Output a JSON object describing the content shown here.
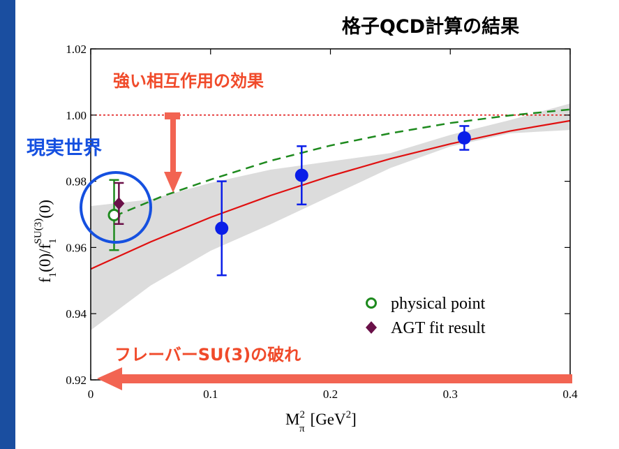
{
  "title": "格子QCD計算の結果",
  "annotations": {
    "strong_interaction": "強い相互作用の効果",
    "real_world": "現実世界",
    "flavor_breaking": "フレーバーSU(3)の破れ"
  },
  "colors": {
    "side_bar": "#1a4ea0",
    "blue_points": "#0a1ee8",
    "fit_line": "#e01010",
    "dashed_fit": "#1e8a1e",
    "physical_point": "#1e8a1e",
    "agt_point": "#6a1048",
    "band": "#dcdcdc",
    "arrow": "#f26452",
    "annotation_red": "#f04a2a",
    "circle_blue": "#1550e0"
  },
  "chart_data": {
    "type": "scatter",
    "xlabel": "M",
    "xlabel_sup": "2",
    "xlabel_sub": "π",
    "xlabel_unit": "[GeV",
    "xlabel_unit_sup": "2",
    "xlabel_unit_end": "]",
    "ylabel": "f",
    "ylabel_sub1": "1",
    "ylabel_mid": "(0)/f",
    "ylabel_sub2": "1",
    "ylabel_sup": "SU(3)",
    "ylabel_end": "(0)",
    "xlim": [
      0,
      0.4
    ],
    "ylim": [
      0.92,
      1.02
    ],
    "x_ticks": [
      {
        "v": 0,
        "label": "0"
      },
      {
        "v": 0.1,
        "label": "0.1"
      },
      {
        "v": 0.2,
        "label": "0.2"
      },
      {
        "v": 0.3,
        "label": "0.3"
      },
      {
        "v": 0.4,
        "label": "0.4"
      }
    ],
    "y_ticks": [
      {
        "v": 0.92,
        "label": "0.92"
      },
      {
        "v": 0.94,
        "label": "0.94"
      },
      {
        "v": 0.96,
        "label": "0.96"
      },
      {
        "v": 0.98,
        "label": "0.98"
      },
      {
        "v": 1.0,
        "label": "1.00"
      },
      {
        "v": 1.02,
        "label": "1.02"
      }
    ],
    "reference_line": 1.0,
    "lattice_points": [
      {
        "x": 0.1093,
        "y": 0.9658,
        "err_lo": 0.0142,
        "err_hi": 0.0142
      },
      {
        "x": 0.176,
        "y": 0.9818,
        "err_lo": 0.0088,
        "err_hi": 0.0088
      },
      {
        "x": 0.3117,
        "y": 0.9931,
        "err_lo": 0.0036,
        "err_hi": 0.0036
      }
    ],
    "fit_curve": {
      "x": [
        0,
        0.05,
        0.1,
        0.15,
        0.2,
        0.25,
        0.3,
        0.35,
        0.4
      ],
      "y": [
        0.9535,
        0.9617,
        0.9691,
        0.9757,
        0.9816,
        0.9868,
        0.9913,
        0.9952,
        0.9983
      ]
    },
    "dashed_curve": {
      "x": [
        0.02,
        0.06,
        0.1,
        0.15,
        0.2,
        0.25,
        0.3,
        0.35,
        0.4
      ],
      "y": [
        0.9695,
        0.9755,
        0.9805,
        0.9862,
        0.9908,
        0.9945,
        0.9976,
        0.9999,
        1.0017
      ]
    },
    "error_band": {
      "x": [
        0,
        0.05,
        0.1,
        0.15,
        0.2,
        0.25,
        0.3,
        0.35,
        0.4
      ],
      "lower": [
        0.935,
        0.9485,
        0.959,
        0.967,
        0.9755,
        0.984,
        0.9905,
        0.9945,
        0.9955
      ],
      "upper": [
        0.9725,
        0.9745,
        0.9795,
        0.9835,
        0.986,
        0.9885,
        0.994,
        0.9985,
        1.0035
      ]
    },
    "physical_point": {
      "x": 0.0195,
      "y": 0.9698,
      "err_lo": 0.0106,
      "err_hi": 0.0106
    },
    "agt_point": {
      "x": 0.0235,
      "y": 0.9733,
      "err_lo": 0.0062,
      "err_hi": 0.0062
    },
    "legend": [
      {
        "label": "physical point",
        "marker": "open-circle"
      },
      {
        "label": "AGT fit result",
        "marker": "diamond"
      }
    ],
    "legend_placement": "bottom-right"
  }
}
